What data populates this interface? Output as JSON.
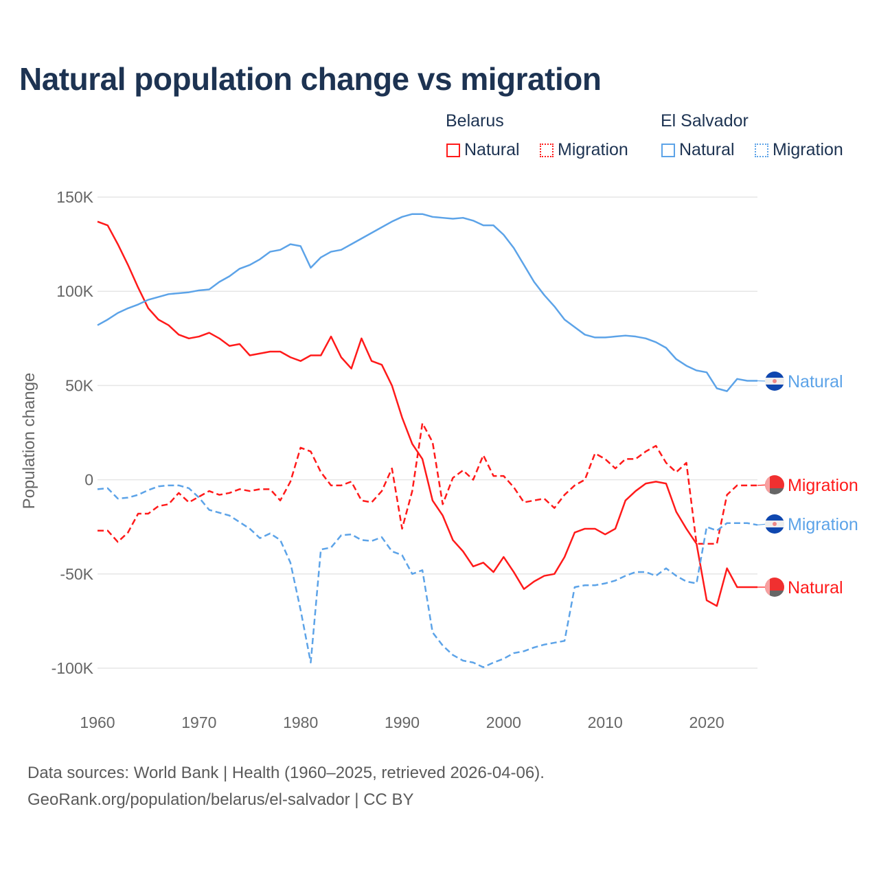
{
  "chart_data": {
    "type": "line",
    "title": "Natural population change vs migration",
    "xlabel": "",
    "ylabel": "Population change",
    "xlim": [
      1960,
      2025
    ],
    "ylim": [
      -100000,
      150000
    ],
    "x_ticks": [
      "1960",
      "1970",
      "1980",
      "1990",
      "2000",
      "2010",
      "2020"
    ],
    "y_ticks": [
      {
        "v": 150000,
        "label": "150K"
      },
      {
        "v": 100000,
        "label": "100K"
      },
      {
        "v": 50000,
        "label": "50K"
      },
      {
        "v": 0,
        "label": "0"
      },
      {
        "v": -50000,
        "label": "-50K"
      },
      {
        "v": -100000,
        "label": "-100K"
      }
    ],
    "grid": true,
    "legend": {
      "groups": [
        {
          "country": "Belarus",
          "items": [
            "Natural",
            "Migration"
          ]
        },
        {
          "country": "El Salvador",
          "items": [
            "Natural",
            "Migration"
          ]
        }
      ],
      "placement": "top-right"
    },
    "start_year": 1960,
    "series": [
      {
        "name": "Belarus Natural",
        "country": "Belarus",
        "kind": "Natural",
        "color": "#ff1a1a",
        "dashed": false,
        "end_label": "Natural",
        "values": [
          137,
          135,
          125,
          114,
          102,
          91,
          85,
          82,
          77,
          75,
          76,
          78,
          75,
          71,
          72,
          66,
          67,
          68,
          68,
          65,
          63,
          66,
          66,
          76,
          65,
          59,
          75,
          63,
          61,
          50,
          33,
          19,
          11,
          -11,
          -19,
          -32,
          -38,
          -46,
          -44,
          -49,
          -41,
          -49,
          -58,
          -54,
          -51,
          -50,
          -41,
          -28,
          -26,
          -26,
          -29,
          -26,
          -11,
          -6,
          -2,
          -1,
          -2,
          -17,
          -26,
          -34,
          -64,
          -67,
          -47,
          -57,
          -57,
          -57
        ]
      },
      {
        "name": "Belarus Migration",
        "country": "Belarus",
        "kind": "Migration",
        "color": "#ff1a1a",
        "dashed": true,
        "end_label": "Migration",
        "values": [
          -27,
          -27,
          -33,
          -28,
          -18,
          -18,
          -14,
          -13,
          -7,
          -12,
          -9,
          -6,
          -8,
          -7,
          -5,
          -6,
          -5,
          -5,
          -11,
          -1,
          17,
          15,
          4,
          -3,
          -3,
          -1,
          -11,
          -12,
          -6,
          6,
          -26,
          -6,
          30,
          20,
          -13,
          1,
          5,
          0,
          13,
          2,
          2,
          -4,
          -12,
          -11,
          -10,
          -15,
          -8,
          -3,
          0,
          14,
          11,
          6,
          11,
          11,
          15,
          18,
          9,
          4,
          9,
          -34,
          -34,
          -34,
          -8,
          -3,
          -3,
          -3
        ]
      },
      {
        "name": "El Salvador Natural",
        "country": "El Salvador",
        "kind": "Natural",
        "color": "#5ca3e8",
        "dashed": false,
        "end_label": "Natural",
        "values": [
          82,
          85,
          88.5,
          91,
          93,
          95.5,
          97,
          98.5,
          99,
          99.5,
          100.5,
          101,
          105,
          108,
          112,
          114,
          117,
          121,
          122,
          125,
          124,
          112.5,
          118,
          121,
          122,
          125,
          128,
          131,
          134,
          137,
          139.5,
          141,
          141,
          139.5,
          139,
          138.5,
          139,
          137.5,
          135,
          135,
          130,
          123,
          114,
          105,
          98,
          92,
          85,
          81,
          77,
          75.5,
          75.5,
          76,
          76.5,
          76,
          75,
          73,
          70,
          64,
          60.5,
          58,
          57,
          48.5,
          47,
          53.5,
          52.5,
          52.5
        ]
      },
      {
        "name": "El Salvador Migration",
        "country": "El Salvador",
        "kind": "Migration",
        "color": "#5ca3e8",
        "dashed": true,
        "end_label": "Migration",
        "values": [
          -5,
          -4.5,
          -10,
          -9.5,
          -8,
          -5.5,
          -3.5,
          -3,
          -3,
          -4.5,
          -9.5,
          -16,
          -17.5,
          -19,
          -22.5,
          -26,
          -31,
          -28.5,
          -32,
          -44,
          -69,
          -97,
          -37,
          -36,
          -29.5,
          -29,
          -32,
          -32.5,
          -30.5,
          -38,
          -40,
          -50,
          -48,
          -81,
          -88,
          -93,
          -96,
          -97,
          -99.5,
          -97,
          -95,
          -92,
          -91,
          -89,
          -87.5,
          -86.5,
          -85.5,
          -57,
          -56,
          -56,
          -55,
          -53.5,
          -51,
          -49,
          -49,
          -51,
          -47,
          -51,
          -54,
          -55,
          -25,
          -27,
          -23,
          -23,
          -23,
          -24
        ]
      }
    ],
    "value_unit": "thousands"
  },
  "footer": {
    "line1": "Data sources: World Bank | Health (1960–2025, retrieved 2026-04-06).",
    "line2": "GeoRank.org/population/belarus/el-salvador | CC BY"
  }
}
